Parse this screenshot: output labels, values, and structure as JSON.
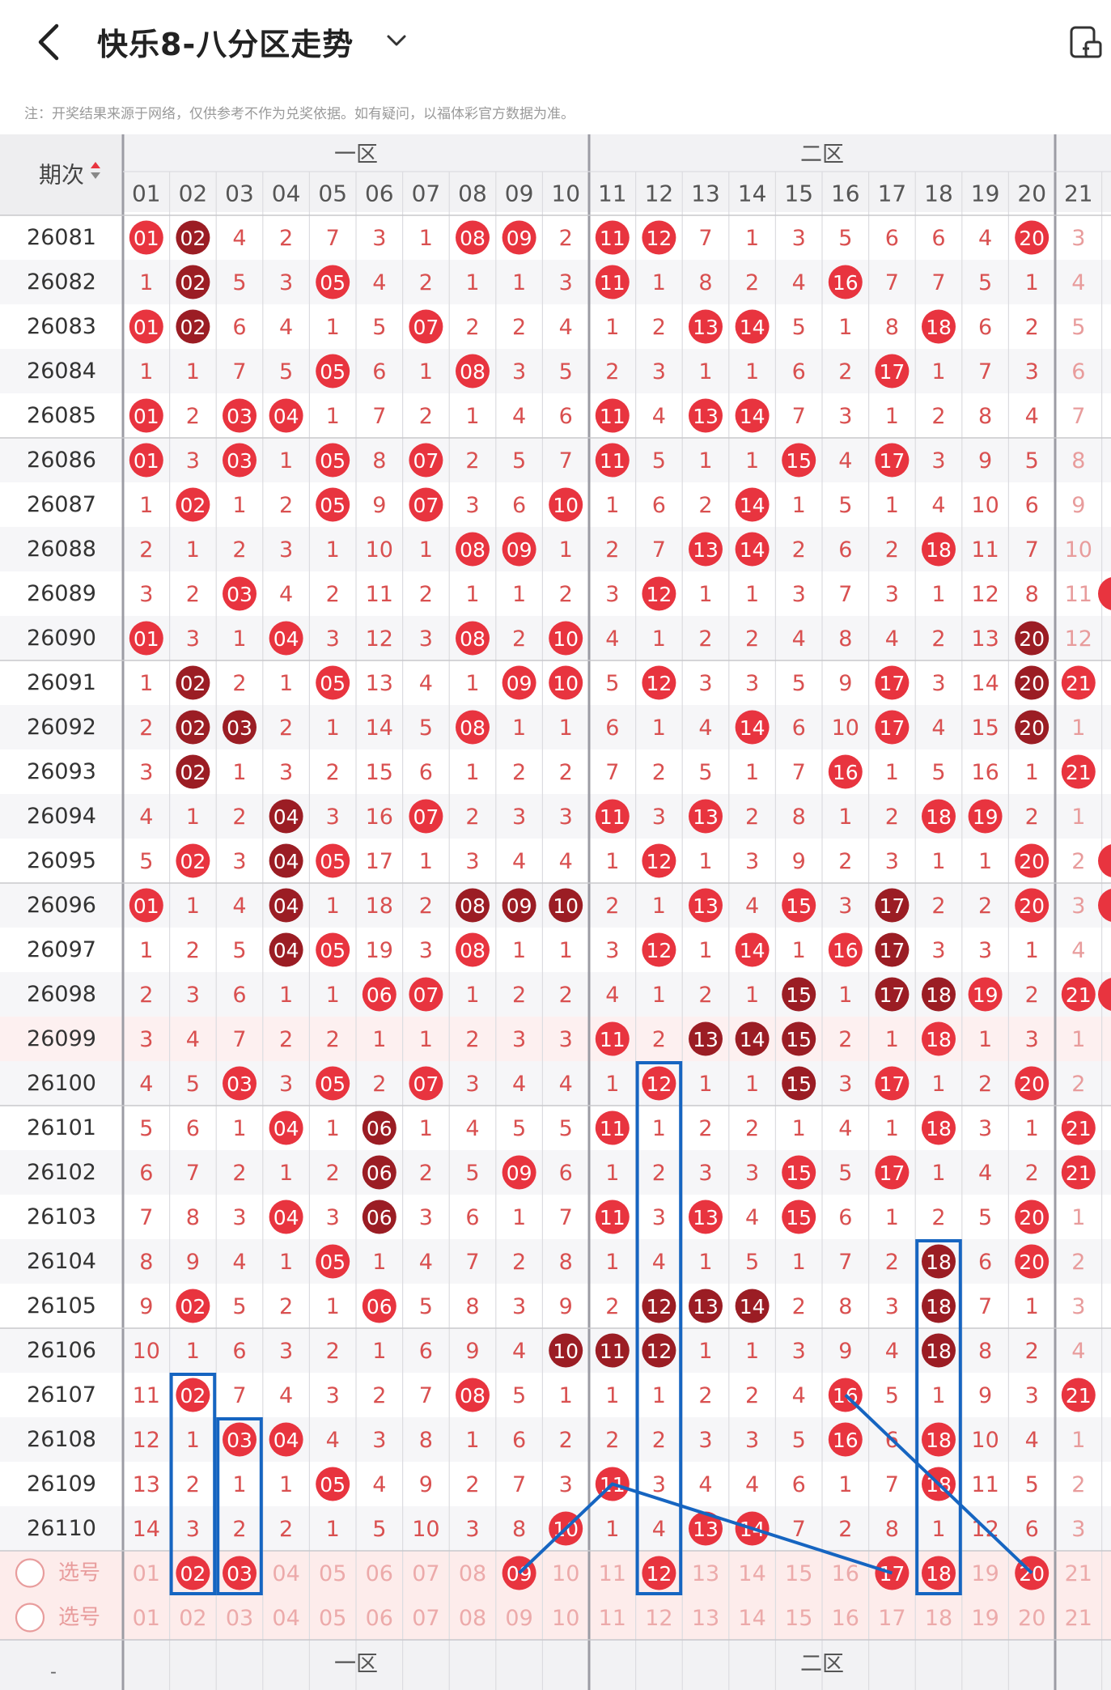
{
  "header": {
    "title": "快乐8-八分区走势",
    "back_icon": "chevron-left-icon",
    "dropdown_icon": "chevron-down-icon",
    "right_icon": "share-icon"
  },
  "note": "注：开奖结果来源于网络，仅供参考不作为兑奖依据。如有疑问，以福体彩官方数据为准。",
  "table": {
    "period_header": "期次",
    "zones": [
      {
        "label": "一区"
      },
      {
        "label": "二区"
      }
    ],
    "columns": [
      "01",
      "02",
      "03",
      "04",
      "05",
      "06",
      "07",
      "08",
      "09",
      "10",
      "11",
      "12",
      "13",
      "14",
      "15",
      "16",
      "17",
      "18",
      "19",
      "20",
      "21"
    ],
    "rows": [
      {
        "period": "26081",
        "values": [
          "01",
          "02",
          4,
          2,
          7,
          3,
          1,
          "08",
          "09",
          2,
          "11",
          "12",
          7,
          1,
          3,
          5,
          6,
          6,
          4,
          "20",
          3
        ]
      },
      {
        "period": "26082",
        "values": [
          1,
          "02",
          5,
          3,
          "05",
          4,
          2,
          1,
          1,
          3,
          "11",
          1,
          8,
          2,
          4,
          "16",
          7,
          7,
          5,
          1,
          4
        ]
      },
      {
        "period": "26083",
        "values": [
          "01",
          "02",
          6,
          4,
          1,
          5,
          "07",
          2,
          2,
          4,
          1,
          2,
          "13",
          "14",
          5,
          1,
          8,
          "18",
          6,
          2,
          5
        ]
      },
      {
        "period": "26084",
        "values": [
          1,
          1,
          7,
          5,
          "05",
          6,
          1,
          "08",
          3,
          5,
          2,
          3,
          1,
          1,
          6,
          2,
          "17",
          1,
          7,
          3,
          6
        ]
      },
      {
        "period": "26085",
        "values": [
          "01",
          2,
          "03",
          "04",
          1,
          7,
          2,
          1,
          4,
          6,
          "11",
          4,
          "13",
          "14",
          7,
          3,
          1,
          2,
          8,
          4,
          7
        ]
      },
      {
        "period": "26086",
        "values": [
          "01",
          3,
          "03",
          1,
          "05",
          8,
          "07",
          2,
          5,
          7,
          "11",
          5,
          1,
          1,
          "15",
          4,
          "17",
          3,
          9,
          5,
          8
        ]
      },
      {
        "period": "26087",
        "values": [
          1,
          "02",
          1,
          2,
          "05",
          9,
          "07",
          3,
          6,
          "10",
          1,
          6,
          2,
          "14",
          1,
          5,
          1,
          4,
          10,
          6,
          9
        ]
      },
      {
        "period": "26088",
        "values": [
          2,
          1,
          2,
          3,
          1,
          10,
          1,
          "08",
          "09",
          1,
          2,
          7,
          "13",
          "14",
          2,
          6,
          2,
          "18",
          11,
          7,
          10
        ]
      },
      {
        "period": "26089",
        "values": [
          3,
          2,
          "03",
          4,
          2,
          11,
          2,
          1,
          1,
          2,
          3,
          "12",
          1,
          1,
          3,
          7,
          3,
          1,
          12,
          8,
          11
        ]
      },
      {
        "period": "26090",
        "values": [
          "01",
          3,
          1,
          "04",
          3,
          12,
          3,
          "08",
          2,
          "10",
          4,
          1,
          2,
          2,
          4,
          8,
          4,
          2,
          13,
          "20",
          12
        ]
      },
      {
        "period": "26091",
        "values": [
          1,
          "02",
          2,
          1,
          "05",
          13,
          4,
          1,
          "09",
          "10",
          5,
          "12",
          3,
          3,
          5,
          9,
          "17",
          3,
          14,
          "20",
          "21"
        ]
      },
      {
        "period": "26092",
        "values": [
          2,
          "02",
          "03",
          2,
          1,
          14,
          5,
          "08",
          1,
          1,
          6,
          1,
          4,
          "14",
          6,
          10,
          "17",
          4,
          15,
          "20",
          1
        ]
      },
      {
        "period": "26093",
        "values": [
          3,
          "02",
          1,
          3,
          2,
          15,
          6,
          1,
          2,
          2,
          7,
          2,
          5,
          1,
          7,
          "16",
          1,
          5,
          16,
          1,
          "21"
        ]
      },
      {
        "period": "26094",
        "values": [
          4,
          1,
          2,
          "04",
          3,
          16,
          "07",
          2,
          3,
          3,
          "11",
          3,
          "13",
          2,
          8,
          1,
          2,
          "18",
          "19",
          2,
          1
        ]
      },
      {
        "period": "26095",
        "values": [
          5,
          "02",
          3,
          "04",
          "05",
          17,
          1,
          3,
          4,
          4,
          1,
          "12",
          1,
          3,
          9,
          2,
          3,
          1,
          1,
          "20",
          2
        ]
      },
      {
        "period": "26096",
        "values": [
          "01",
          1,
          4,
          "04",
          1,
          18,
          2,
          "08",
          "09",
          "10",
          2,
          1,
          "13",
          4,
          "15",
          3,
          "17",
          2,
          2,
          "20",
          3
        ]
      },
      {
        "period": "26097",
        "values": [
          1,
          2,
          5,
          "04",
          "05",
          19,
          3,
          "08",
          1,
          1,
          3,
          "12",
          1,
          "14",
          1,
          "16",
          "17",
          3,
          3,
          1,
          4
        ]
      },
      {
        "period": "26098",
        "values": [
          2,
          3,
          6,
          1,
          1,
          "06",
          "07",
          1,
          2,
          2,
          4,
          1,
          2,
          1,
          "15",
          1,
          "17",
          "18",
          "19",
          2,
          "21"
        ]
      },
      {
        "period": "26099",
        "values": [
          3,
          4,
          7,
          2,
          2,
          1,
          1,
          2,
          3,
          3,
          "11",
          2,
          "13",
          "14",
          "15",
          2,
          1,
          "18",
          1,
          3,
          1
        ]
      },
      {
        "period": "26100",
        "values": [
          4,
          5,
          "03",
          3,
          "05",
          2,
          "07",
          3,
          4,
          4,
          1,
          "12",
          1,
          1,
          "15",
          3,
          "17",
          1,
          2,
          "20",
          2
        ]
      },
      {
        "period": "26101",
        "values": [
          5,
          6,
          1,
          "04",
          1,
          "06",
          1,
          4,
          5,
          5,
          "11",
          1,
          2,
          2,
          1,
          4,
          1,
          "18",
          3,
          1,
          "21"
        ]
      },
      {
        "period": "26102",
        "values": [
          6,
          7,
          2,
          1,
          2,
          "06",
          2,
          5,
          "09",
          6,
          1,
          2,
          3,
          3,
          "15",
          5,
          "17",
          1,
          4,
          2,
          "21"
        ]
      },
      {
        "period": "26103",
        "values": [
          7,
          8,
          3,
          "04",
          3,
          "06",
          3,
          6,
          1,
          7,
          "11",
          3,
          "13",
          4,
          "15",
          6,
          1,
          2,
          5,
          "20",
          1
        ]
      },
      {
        "period": "26104",
        "values": [
          8,
          9,
          4,
          1,
          "05",
          1,
          4,
          7,
          2,
          8,
          1,
          4,
          1,
          5,
          1,
          7,
          2,
          "18",
          6,
          "20",
          2
        ]
      },
      {
        "period": "26105",
        "values": [
          9,
          "02",
          5,
          2,
          1,
          "06",
          5,
          8,
          3,
          9,
          2,
          "12",
          "13",
          "14",
          2,
          8,
          3,
          "18",
          7,
          1,
          3
        ]
      },
      {
        "period": "26106",
        "values": [
          10,
          1,
          6,
          3,
          2,
          1,
          6,
          9,
          4,
          "10",
          "11",
          "12",
          1,
          1,
          3,
          9,
          4,
          "18",
          8,
          2,
          4
        ]
      },
      {
        "period": "26107",
        "values": [
          11,
          "02",
          7,
          4,
          3,
          2,
          7,
          "08",
          5,
          1,
          1,
          1,
          2,
          2,
          4,
          "16",
          5,
          1,
          9,
          3,
          "21"
        ]
      },
      {
        "period": "26108",
        "values": [
          12,
          1,
          "03",
          "04",
          4,
          3,
          8,
          1,
          6,
          2,
          2,
          2,
          3,
          3,
          5,
          "16",
          6,
          "18",
          10,
          4,
          1
        ]
      },
      {
        "period": "26109",
        "values": [
          13,
          2,
          1,
          1,
          "05",
          4,
          9,
          2,
          7,
          3,
          "11",
          3,
          4,
          4,
          6,
          1,
          7,
          "18",
          11,
          5,
          2
        ]
      },
      {
        "period": "26110",
        "values": [
          14,
          3,
          2,
          2,
          1,
          5,
          10,
          3,
          8,
          "10",
          1,
          4,
          "13",
          "14",
          7,
          2,
          8,
          1,
          12,
          6,
          3
        ]
      }
    ],
    "select_rows": [
      {
        "label": "选号",
        "selected": [
          "02",
          "03",
          "09",
          "12",
          "17",
          "18",
          "20"
        ]
      },
      {
        "label": "选号",
        "selected": []
      }
    ],
    "footer_period": "-"
  },
  "colors": {
    "ball_red": "#e8343f",
    "ball_dark": "#9b1d24",
    "miss_text": "#d95050",
    "annotation_blue": "#1665c1"
  }
}
